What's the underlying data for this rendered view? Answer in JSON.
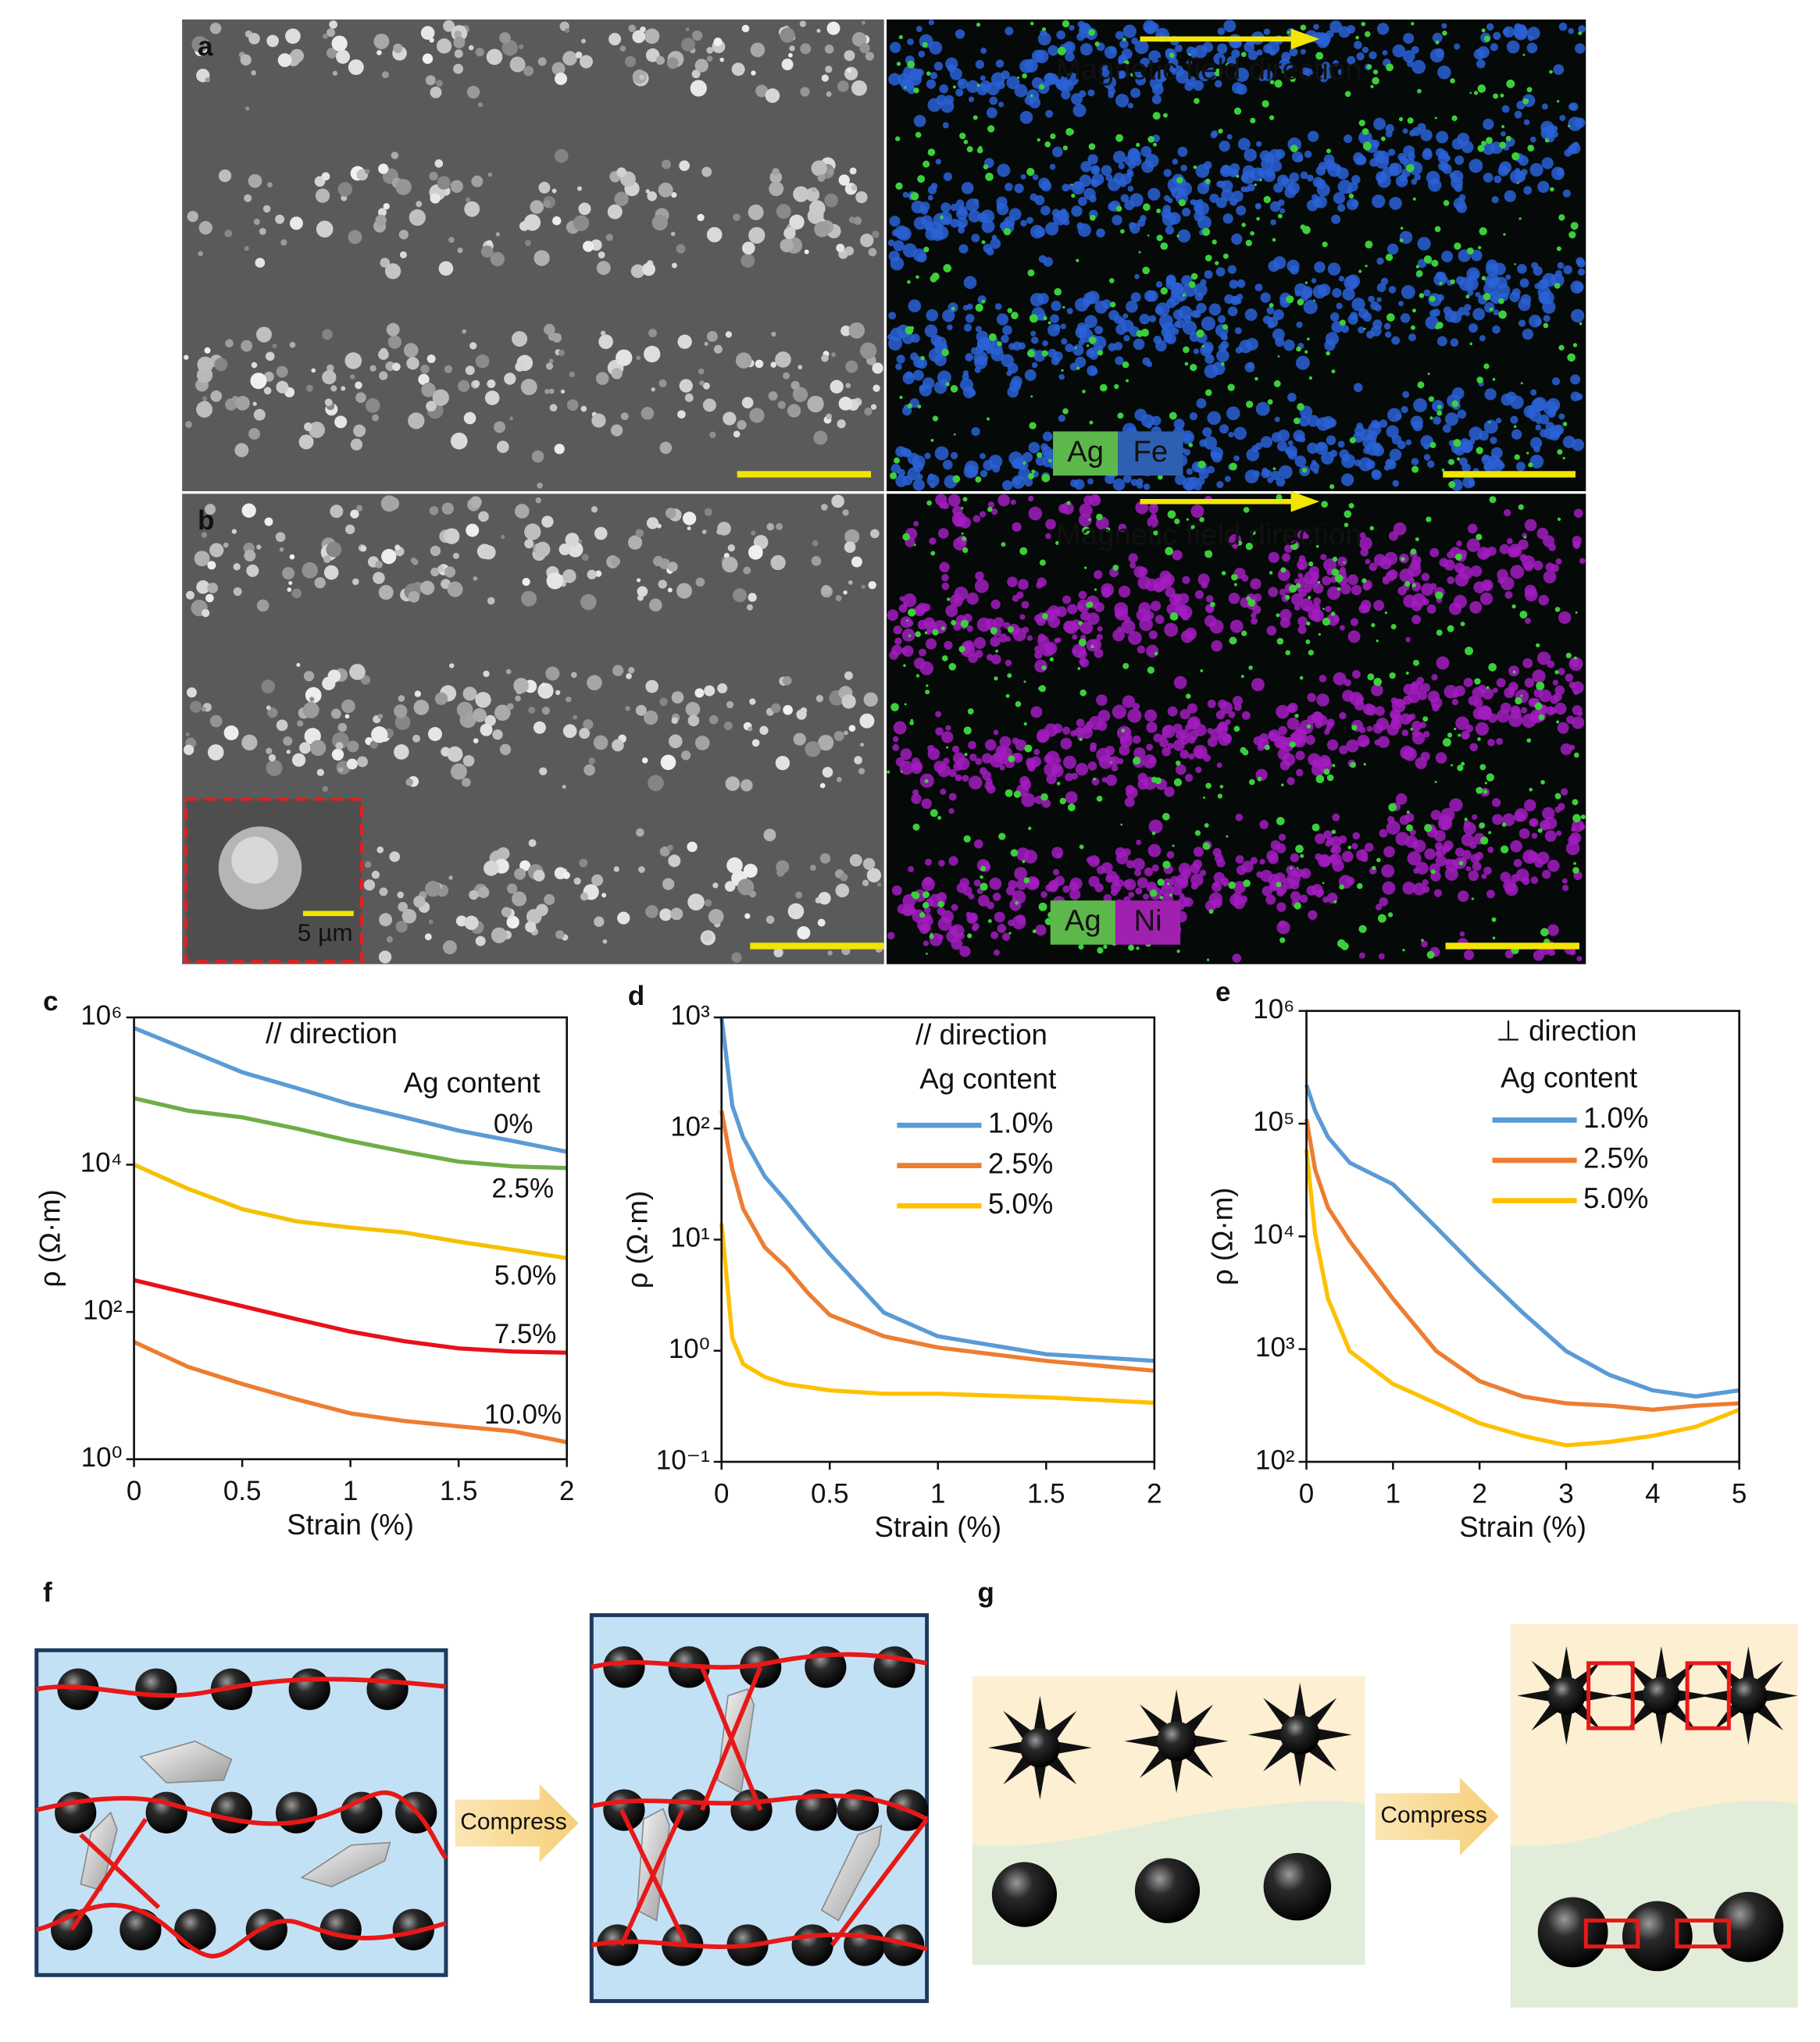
{
  "panels": [
    {
      "label": "a",
      "annotation": "Magnetic field direction",
      "elements": [
        "Ag",
        "Fe"
      ]
    },
    {
      "label": "b",
      "annotation": "Magnetic field direction",
      "elements": [
        "Ag",
        "Ni"
      ],
      "inset_scale": "5 µm"
    }
  ],
  "chart_data": [
    {
      "type": "line",
      "label": "c",
      "annotation": "// direction",
      "legend_title": "Ag content",
      "legend": "inline",
      "xlabel": "Strain (%)",
      "ylabel": "ρ (Ω·m)",
      "log_y": true,
      "xlim": [
        0,
        2
      ],
      "ylim": [
        1,
        1000000
      ],
      "xticks": [
        0,
        0.5,
        1,
        1.5,
        2
      ],
      "yticks": [
        {
          "value": 1,
          "label": "10⁰"
        },
        {
          "value": 100,
          "label": "10²"
        },
        {
          "value": 10000,
          "label": "10⁴"
        },
        {
          "value": 1000000,
          "label": "10⁶"
        }
      ],
      "x": [
        0,
        0.25,
        0.5,
        0.75,
        1,
        1.25,
        1.5,
        1.75,
        2
      ],
      "series": [
        {
          "name": "0%",
          "color": "#5b9bd5",
          "values": [
            720000,
            360000,
            180000,
            110000,
            66000,
            44000,
            29000,
            21000,
            15000
          ]
        },
        {
          "name": "2.5%",
          "color": "#70ad47",
          "values": [
            80000,
            54000,
            44000,
            31000,
            21000,
            15000,
            11000,
            9500,
            9000
          ]
        },
        {
          "name": "5.0%",
          "color": "#f5c000",
          "values": [
            10000,
            4700,
            2500,
            1700,
            1400,
            1200,
            900,
            700,
            540
          ]
        },
        {
          "name": "7.5%",
          "color": "#e8101a",
          "values": [
            270,
            180,
            120,
            80,
            54,
            40,
            32,
            29,
            28
          ]
        },
        {
          "name": "10.0%",
          "color": "#ed7d31",
          "values": [
            39,
            18,
            10.5,
            6.5,
            4.2,
            3.3,
            2.8,
            2.4,
            1.7
          ]
        }
      ]
    },
    {
      "type": "line",
      "label": "d",
      "annotation": "// direction",
      "legend_title": "Ag content",
      "legend": "upper right",
      "xlabel": "Strain (%)",
      "ylabel": "ρ (Ω·m)",
      "log_y": true,
      "xlim": [
        0,
        2
      ],
      "ylim": [
        0.1,
        1000
      ],
      "xticks": [
        0,
        0.5,
        1,
        1.5,
        2
      ],
      "yticks": [
        {
          "value": 0.1,
          "label": "10⁻¹"
        },
        {
          "value": 1,
          "label": "10⁰"
        },
        {
          "value": 10,
          "label": "10¹"
        },
        {
          "value": 100,
          "label": "10²"
        },
        {
          "value": 1000,
          "label": "10³"
        }
      ],
      "x": [
        0,
        0.05,
        0.1,
        0.2,
        0.3,
        0.4,
        0.5,
        0.75,
        1,
        1.5,
        2
      ],
      "series": [
        {
          "name": "1.0%",
          "color": "#5b9bd5",
          "values": [
            1000,
            160,
            83,
            37,
            22,
            12.6,
            7.4,
            2.2,
            1.35,
            0.93,
            0.81
          ]
        },
        {
          "name": "2.5%",
          "color": "#ed7d31",
          "values": [
            145,
            43,
            19,
            8.5,
            5.6,
            3.3,
            2.1,
            1.35,
            1.07,
            0.81,
            0.66
          ]
        },
        {
          "name": "5.0%",
          "color": "#ffc000",
          "values": [
            14,
            1.3,
            0.76,
            0.58,
            0.5,
            0.47,
            0.44,
            0.41,
            0.41,
            0.38,
            0.34
          ]
        }
      ]
    },
    {
      "type": "line",
      "label": "e",
      "annotation": "⊥ direction",
      "legend_title": "Ag content",
      "legend": "upper right",
      "xlabel": "Strain (%)",
      "ylabel": "ρ (Ω·m)",
      "log_y": true,
      "xlim": [
        0,
        5
      ],
      "ylim": [
        100,
        1000000
      ],
      "xticks": [
        0,
        1,
        2,
        3,
        4,
        5
      ],
      "yticks": [
        {
          "value": 100,
          "label": "10²"
        },
        {
          "value": 1000,
          "label": "10³"
        },
        {
          "value": 10000,
          "label": "10⁴"
        },
        {
          "value": 100000,
          "label": "10⁵"
        },
        {
          "value": 1000000,
          "label": "10⁶"
        }
      ],
      "x": [
        0,
        0.1,
        0.25,
        0.5,
        1,
        1.5,
        2,
        2.5,
        3,
        3.5,
        4,
        4.5,
        5
      ],
      "series": [
        {
          "name": "1.0%",
          "color": "#5b9bd5",
          "values": [
            220000,
            130000,
            76000,
            45000,
            29000,
            12000,
            4900,
            2100,
            960,
            590,
            430,
            380,
            430
          ]
        },
        {
          "name": "2.5%",
          "color": "#ed7d31",
          "values": [
            110000,
            39000,
            18000,
            9100,
            2800,
            960,
            520,
            380,
            330,
            315,
            290,
            315,
            330
          ]
        },
        {
          "name": "5.0%",
          "color": "#ffc000",
          "values": [
            59000,
            10500,
            2800,
            960,
            490,
            330,
            220,
            170,
            140,
            150,
            170,
            205,
            290
          ]
        }
      ]
    }
  ],
  "schematics": [
    {
      "label": "f",
      "arrow": "Compress"
    },
    {
      "label": "g",
      "arrow": "Compress"
    }
  ]
}
